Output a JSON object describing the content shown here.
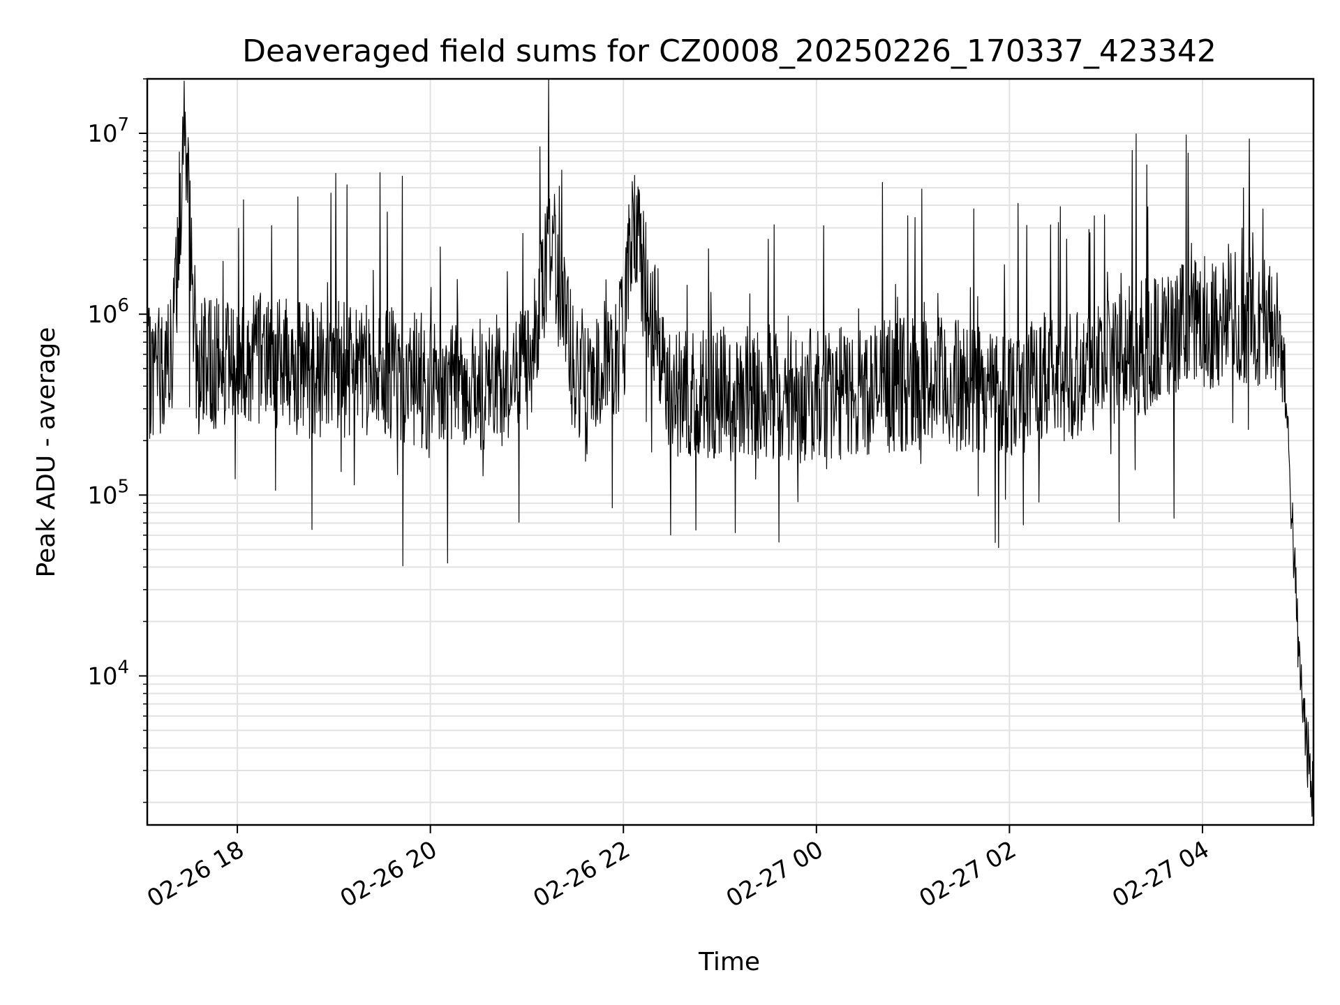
{
  "chart_data": {
    "type": "line",
    "title": "Deaveraged field sums for CZ0008_20250226_170337_423342",
    "xlabel": "Time",
    "ylabel": "Peak ADU - average",
    "yscale": "log",
    "ylim": [
      1500,
      20000000
    ],
    "xlim": [
      "2025-02-26 17:04",
      "2025-02-27 05:09"
    ],
    "grid": true,
    "line_color": "#000000",
    "x_ticks": [
      {
        "t": "2025-02-26 18:00",
        "label": "02-26 18"
      },
      {
        "t": "2025-02-26 20:00",
        "label": "02-26 20"
      },
      {
        "t": "2025-02-26 22:00",
        "label": "02-26 22"
      },
      {
        "t": "2025-02-27 00:00",
        "label": "02-27 00"
      },
      {
        "t": "2025-02-27 02:00",
        "label": "02-27 02"
      },
      {
        "t": "2025-02-27 04:00",
        "label": "02-27 04"
      }
    ],
    "y_ticks": [
      {
        "value": 10000,
        "base": "10",
        "exp": "4"
      },
      {
        "value": 100000,
        "base": "10",
        "exp": "5"
      },
      {
        "value": 1000000,
        "base": "10",
        "exp": "6"
      },
      {
        "value": 10000000,
        "base": "10",
        "exp": "7"
      }
    ],
    "series": [
      {
        "x": [
          "2025-02-26 17:04",
          "2025-02-26 17:20",
          "2025-02-26 17:27",
          "2025-02-26 17:35",
          "2025-02-26 17:45",
          "2025-02-26 18:00",
          "2025-02-26 18:15",
          "2025-02-26 18:30",
          "2025-02-26 18:45",
          "2025-02-26 19:00",
          "2025-02-26 19:30",
          "2025-02-26 20:00",
          "2025-02-26 20:30",
          "2025-02-26 21:00",
          "2025-02-26 21:15",
          "2025-02-26 21:30",
          "2025-02-26 22:00",
          "2025-02-26 22:05",
          "2025-02-26 22:30",
          "2025-02-26 23:00",
          "2025-02-26 23:30",
          "2025-02-27 00:00",
          "2025-02-27 00:30",
          "2025-02-27 01:00",
          "2025-02-27 01:30",
          "2025-02-27 02:00",
          "2025-02-27 02:30",
          "2025-02-27 03:00",
          "2025-02-27 03:30",
          "2025-02-27 04:00",
          "2025-02-27 04:20",
          "2025-02-27 04:40",
          "2025-02-27 04:50",
          "2025-02-27 04:55",
          "2025-02-27 05:00",
          "2025-02-27 05:04",
          "2025-02-27 05:08"
        ],
        "y": [
          450000,
          600000,
          13000000,
          500000,
          550000,
          500000,
          600000,
          520000,
          480000,
          500000,
          470000,
          420000,
          400000,
          450000,
          2600000,
          420000,
          700000,
          3200000,
          380000,
          360000,
          370000,
          350000,
          380000,
          420000,
          400000,
          380000,
          450000,
          550000,
          700000,
          900000,
          950000,
          900000,
          700000,
          100000,
          12000,
          5000,
          2200
        ]
      }
    ]
  }
}
